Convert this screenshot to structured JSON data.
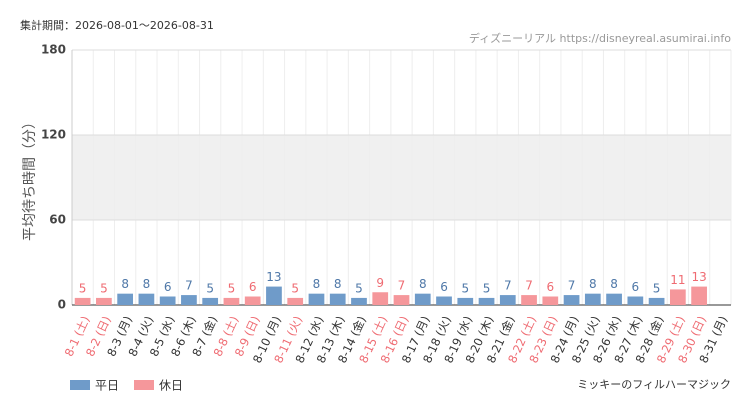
{
  "chart_data": {
    "type": "bar",
    "period": "集計期間：2026-08-01～2026-08-31",
    "source": "ディズニーリアル https://disneyreal.asumirai.info",
    "attraction": "ミッキーのフィルハーマジック",
    "ylabel": "平均待ち時間（分）",
    "categories": [
      "8-1 (土)",
      "8-2 (日)",
      "8-3 (月)",
      "8-4 (火)",
      "8-5 (水)",
      "8-6 (木)",
      "8-7 (金)",
      "8-8 (土)",
      "8-9 (日)",
      "8-10 (月)",
      "8-11 (火)",
      "8-12 (水)",
      "8-13 (木)",
      "8-14 (金)",
      "8-15 (土)",
      "8-16 (日)",
      "8-17 (月)",
      "8-18 (火)",
      "8-19 (水)",
      "8-20 (木)",
      "8-21 (金)",
      "8-22 (土)",
      "8-23 (日)",
      "8-24 (月)",
      "8-25 (火)",
      "8-26 (水)",
      "8-27 (木)",
      "8-28 (金)",
      "8-29 (土)",
      "8-30 (日)",
      "8-31 (月)"
    ],
    "series": [
      {
        "name": "平日",
        "color": "#6f9bc9",
        "label_color": "#4f78a8",
        "values": [
          null,
          null,
          8,
          8,
          6,
          7,
          5,
          null,
          null,
          13,
          null,
          8,
          8,
          5,
          null,
          null,
          8,
          6,
          5,
          5,
          7,
          null,
          null,
          7,
          8,
          8,
          6,
          5,
          null,
          null,
          null
        ]
      },
      {
        "name": "休日",
        "color": "#f5979b",
        "label_color": "#ef6b72",
        "values": [
          5,
          5,
          null,
          null,
          null,
          null,
          null,
          5,
          6,
          null,
          5,
          null,
          null,
          null,
          9,
          7,
          null,
          null,
          null,
          null,
          null,
          7,
          6,
          null,
          null,
          null,
          null,
          null,
          11,
          13,
          null
        ]
      }
    ],
    "ylim": [
      0,
      180
    ],
    "yticks": [
      0,
      60,
      120,
      180
    ],
    "grid": true
  }
}
